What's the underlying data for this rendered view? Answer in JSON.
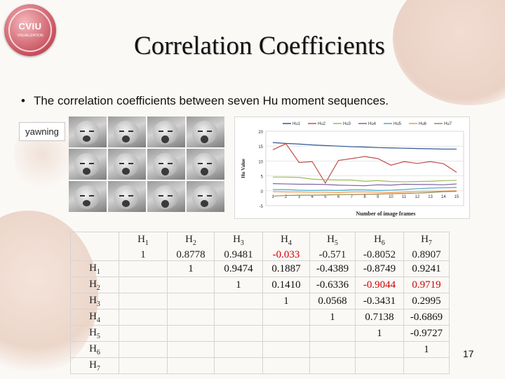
{
  "slide": {
    "logo_text": "CVIU",
    "logo_sub": "VISUALIZATION",
    "title": "Correlation Coefficients",
    "bullet_char": "•",
    "bullet": "The correlation coefficients between seven Hu moment sequences.",
    "image_label": "yawning",
    "page_number": "17"
  },
  "table": {
    "row_headers": [
      "H1",
      "H2",
      "H3",
      "H4",
      "H5",
      "H6",
      "H7"
    ],
    "col_headers": [
      "H1",
      "H2",
      "H3",
      "H4",
      "H5",
      "H6",
      "H7"
    ],
    "values": [
      [
        "1",
        "0.8778",
        "0.9481",
        "-0.033",
        "-0.571",
        "-0.8052",
        "0.8907"
      ],
      [
        "",
        "1",
        "0.9474",
        "0.1887",
        "-0.4389",
        "-0.8749",
        "0.9241"
      ],
      [
        "",
        "",
        "1",
        "0.1410",
        "-0.6336",
        "-0.9044",
        "0.9719"
      ],
      [
        "",
        "",
        "",
        "1",
        "0.0568",
        "-0.3431",
        "0.2995"
      ],
      [
        "",
        "",
        "",
        "",
        "1",
        "0.7138",
        "-0.6869"
      ],
      [
        "",
        "",
        "",
        "",
        "",
        "1",
        "-0.9727"
      ],
      [
        "",
        "",
        "",
        "",
        "",
        "",
        "1"
      ]
    ],
    "highlight_red": [
      [
        0,
        3
      ],
      [
        2,
        5
      ],
      [
        2,
        6
      ]
    ],
    "highlight_color": "#d00000"
  },
  "chart_data": {
    "type": "line",
    "xlabel": "Number of image frames",
    "ylabel": "Hu Value",
    "x": [
      1,
      2,
      3,
      4,
      5,
      6,
      7,
      8,
      9,
      10,
      11,
      12,
      13,
      14,
      15
    ],
    "xticks": [
      "1",
      "2",
      "3",
      "4",
      "5",
      "6",
      "7",
      "8",
      "9",
      "10",
      "11",
      "12",
      "13",
      "14",
      "15"
    ],
    "yticks": [
      "20",
      "15",
      "10",
      "5",
      "0",
      "-5"
    ],
    "ylim": [
      -5,
      20
    ],
    "series": [
      {
        "name": "Hu1",
        "color": "#2f5597",
        "values": [
          16.2,
          15.9,
          15.7,
          15.4,
          15.2,
          15.0,
          14.8,
          14.7,
          14.5,
          14.4,
          14.3,
          14.2,
          14.1,
          14.0,
          14.0
        ]
      },
      {
        "name": "Hu2",
        "color": "#c0504d",
        "values": [
          13.8,
          15.8,
          9.5,
          9.8,
          2.6,
          10.2,
          10.8,
          11.5,
          10.8,
          8.6,
          9.8,
          9.2,
          9.8,
          9.1,
          6.2
        ]
      },
      {
        "name": "Hu3",
        "color": "#9bbb59",
        "values": [
          4.6,
          4.6,
          4.5,
          3.9,
          3.7,
          3.6,
          3.6,
          3.2,
          3.4,
          3.1,
          3.0,
          3.1,
          3.2,
          3.4,
          3.5
        ]
      },
      {
        "name": "Hu4",
        "color": "#8064a2",
        "values": [
          2.4,
          2.3,
          2.2,
          2.2,
          2.1,
          1.9,
          1.8,
          1.7,
          2.0,
          1.9,
          2.2,
          2.1,
          2.1,
          2.0,
          2.3
        ]
      },
      {
        "name": "Hu5",
        "color": "#4bacc6",
        "values": [
          0.4,
          0.4,
          0.2,
          0.1,
          0.2,
          0.1,
          0.3,
          0.3,
          0.1,
          0.2,
          0.4,
          0.7,
          0.9,
          1.0,
          1.1
        ]
      },
      {
        "name": "Hu6",
        "color": "#f79646",
        "values": [
          -0.3,
          -0.4,
          -0.4,
          -0.5,
          -0.5,
          -0.6,
          -0.4,
          -0.4,
          -0.5,
          -0.6,
          -0.4,
          -0.3,
          -0.2,
          -0.1,
          0.0
        ]
      },
      {
        "name": "Hu7",
        "color": "#948a54",
        "values": [
          -1.8,
          -1.6,
          -1.5,
          -1.5,
          -1.4,
          -1.3,
          -1.3,
          -1.2,
          -1.1,
          -1.0,
          -0.9,
          -0.8,
          -0.6,
          -0.3,
          -0.2
        ]
      }
    ],
    "legend": [
      "Hu1",
      "Hu2",
      "Hu3",
      "Hu4",
      "Hu5",
      "Hu6",
      "Hu7"
    ],
    "legend_position": "top",
    "grid": true
  }
}
